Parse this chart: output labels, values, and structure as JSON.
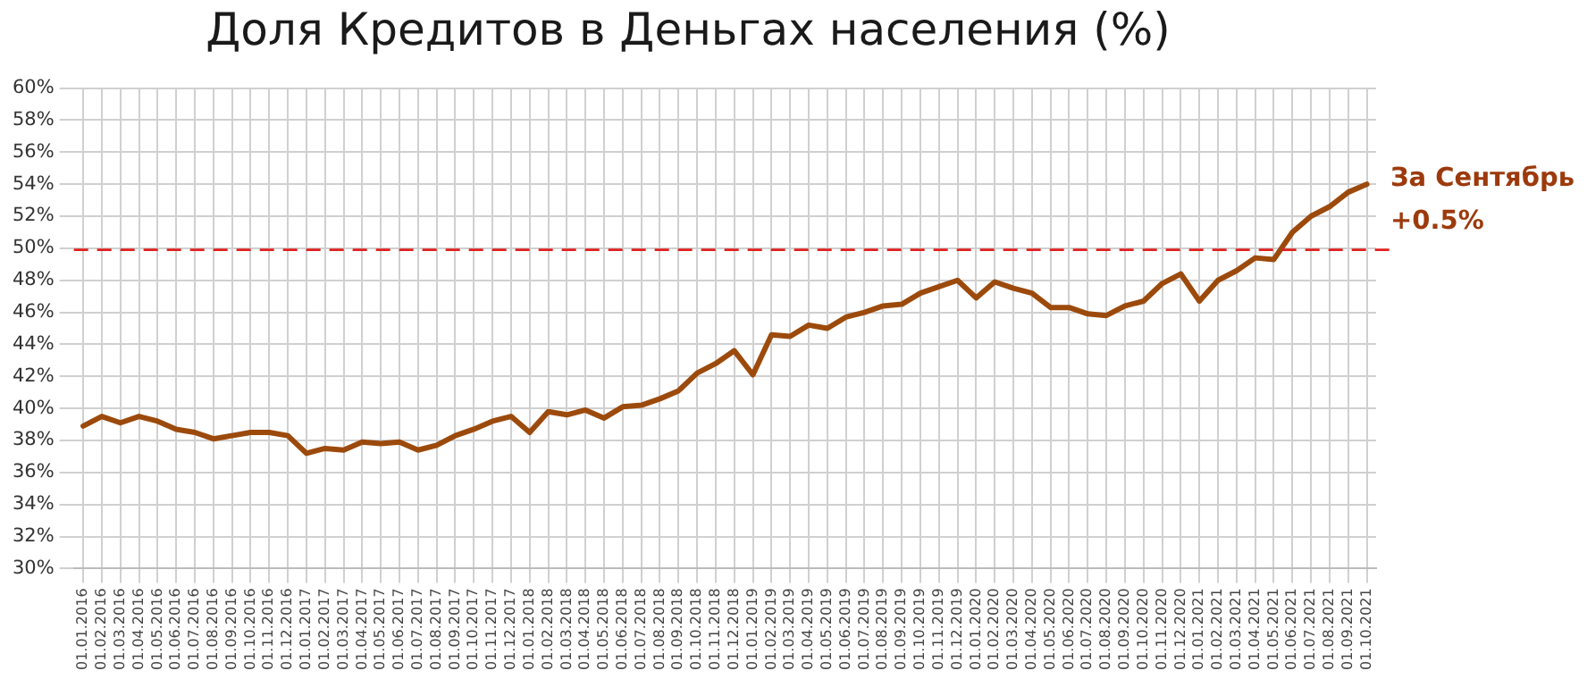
{
  "chart_data": {
    "type": "line",
    "title": "Доля Кредитов в Деньгах населения (%)",
    "categories": [
      "01.01.2016",
      "01.02.2016",
      "01.03.2016",
      "01.04.2016",
      "01.05.2016",
      "01.06.2016",
      "01.07.2016",
      "01.08.2016",
      "01.09.2016",
      "01.10.2016",
      "01.11.2016",
      "01.12.2016",
      "01.01.2017",
      "01.02.2017",
      "01.03.2017",
      "01.04.2017",
      "01.05.2017",
      "01.06.2017",
      "01.07.2017",
      "01.08.2017",
      "01.09.2017",
      "01.10.2017",
      "01.11.2017",
      "01.12.2017",
      "01.01.2018",
      "01.02.2018",
      "01.03.2018",
      "01.04.2018",
      "01.05.2018",
      "01.06.2018",
      "01.07.2018",
      "01.08.2018",
      "01.09.2018",
      "01.10.2018",
      "01.11.2018",
      "01.12.2018",
      "01.01.2019",
      "01.02.2019",
      "01.03.2019",
      "01.04.2019",
      "01.05.2019",
      "01.06.2019",
      "01.07.2019",
      "01.08.2019",
      "01.09.2019",
      "01.10.2019",
      "01.11.2019",
      "01.12.2019",
      "01.01.2020",
      "01.02.2020",
      "01.03.2020",
      "01.04.2020",
      "01.05.2020",
      "01.06.2020",
      "01.07.2020",
      "01.08.2020",
      "01.09.2020",
      "01.10.2020",
      "01.11.2020",
      "01.12.2020",
      "01.01.2021",
      "01.02.2021",
      "01.03.2021",
      "01.04.2021",
      "01.05.2021",
      "01.06.2021",
      "01.07.2021",
      "01.08.2021",
      "01.09.2021",
      "01.10.2021"
    ],
    "series": [
      {
        "color": "#9c4a0c",
        "values": [
          38.9,
          39.5,
          39.1,
          39.5,
          39.2,
          38.7,
          38.5,
          38.1,
          38.3,
          38.5,
          38.5,
          38.3,
          37.2,
          37.5,
          37.4,
          37.9,
          37.8,
          37.9,
          37.4,
          37.7,
          38.3,
          38.7,
          39.2,
          39.5,
          38.5,
          39.8,
          39.6,
          39.9,
          39.4,
          40.1,
          40.2,
          40.6,
          41.1,
          42.2,
          42.8,
          43.6,
          42.1,
          44.6,
          44.5,
          45.2,
          45.0,
          45.7,
          46.0,
          46.4,
          46.5,
          47.2,
          47.6,
          48.0,
          46.9,
          47.9,
          47.5,
          47.2,
          46.3,
          46.3,
          45.9,
          45.8,
          46.4,
          46.7,
          47.8,
          48.4,
          46.7,
          48.0,
          48.6,
          49.4,
          49.3,
          51.0,
          52.0,
          52.6,
          53.5,
          54.0
        ]
      }
    ],
    "ylim": [
      30,
      60
    ],
    "yticks": [
      {
        "value": 30,
        "label": "30%"
      },
      {
        "value": 32,
        "label": "32%"
      },
      {
        "value": 34,
        "label": "34%"
      },
      {
        "value": 36,
        "label": "36%"
      },
      {
        "value": 38,
        "label": "38%"
      },
      {
        "value": 40,
        "label": "40%"
      },
      {
        "value": 42,
        "label": "42%"
      },
      {
        "value": 44,
        "label": "44%"
      },
      {
        "value": 46,
        "label": "46%"
      },
      {
        "value": 48,
        "label": "48%"
      },
      {
        "value": 50,
        "label": "50%"
      },
      {
        "value": 52,
        "label": "52%"
      },
      {
        "value": 54,
        "label": "54%"
      },
      {
        "value": 56,
        "label": "56%"
      },
      {
        "value": 58,
        "label": "58%"
      },
      {
        "value": 60,
        "label": "60%"
      }
    ],
    "ref_lines": [
      {
        "axis": "y",
        "value": 49.9,
        "color": "#e02020",
        "line_style": "dashed"
      }
    ],
    "annotations": [
      "За Сентябрь +0.5%"
    ],
    "grid": true,
    "marker": "none",
    "line_style": "solid"
  }
}
